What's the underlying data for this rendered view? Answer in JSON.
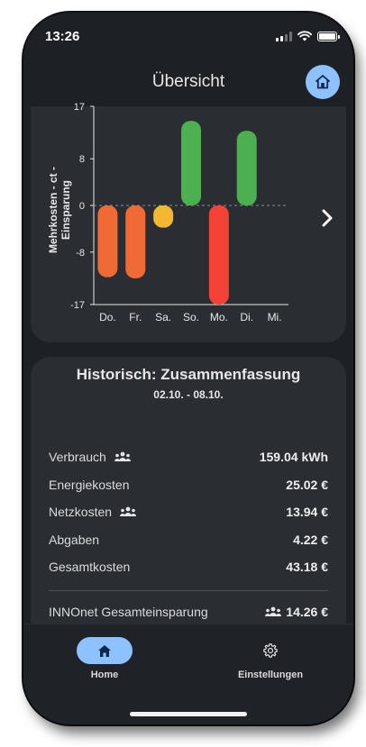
{
  "status_bar": {
    "time": "13:26"
  },
  "header": {
    "title": "Übersicht"
  },
  "chart_data": {
    "type": "bar",
    "ylabel": "Mehrkosten - ct - Einsparung",
    "categories": [
      "Do.",
      "Fr.",
      "Sa.",
      "So.",
      "Mo.",
      "Di.",
      "Mi."
    ],
    "values": [
      -12.3,
      -12.5,
      -3.8,
      14.5,
      -17,
      12.8,
      null
    ],
    "yticks": [
      17,
      8,
      0,
      -8,
      -17
    ],
    "ylim": [
      -17,
      17
    ],
    "colors": [
      "#f06a35",
      "#f06a35",
      "#f4b731",
      "#4caf50",
      "#f44336",
      "#4caf50",
      null
    ]
  },
  "summary": {
    "title": "Historisch: Zusammenfassung",
    "period": "02.10. - 08.10.",
    "rows": [
      {
        "label": "Verbrauch",
        "value": "159.04 kWh"
      },
      {
        "label": "Energiekosten",
        "value": "25.02 €"
      },
      {
        "label": "Netzkosten",
        "value": "13.94 €"
      },
      {
        "label": "Abgaben",
        "value": "4.22 €"
      },
      {
        "label": "Gesamtkosten",
        "value": "43.18 €"
      }
    ],
    "savings": {
      "label": "INNOnet Gesamteinsparung",
      "value": "14.26 €"
    }
  },
  "nav": {
    "home_label": "Home",
    "settings_label": "Einstellungen"
  },
  "colors": {
    "accent": "#8ec1ff",
    "background": "#1d2024",
    "card": "#2a2d32"
  }
}
